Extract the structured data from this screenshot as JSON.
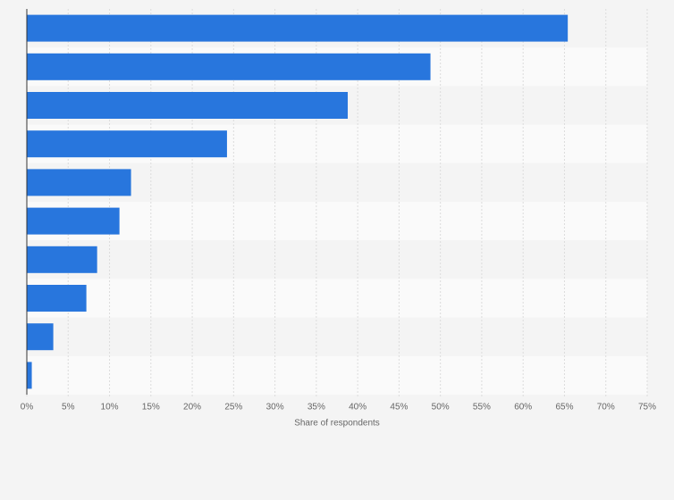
{
  "chart_data": {
    "type": "bar",
    "orientation": "horizontal",
    "x_label": "Share of respondents",
    "categories": [
      null,
      null,
      null,
      null,
      null,
      null,
      null,
      null,
      null,
      null
    ],
    "values": [
      65.4,
      48.8,
      38.8,
      24.2,
      12.6,
      11.2,
      8.5,
      7.2,
      3.2,
      0.6
    ],
    "color": "#2876dd",
    "xlim": [
      0,
      75
    ],
    "xticks": [
      {
        "value": 0,
        "label": "0%"
      },
      {
        "value": 5,
        "label": "5%"
      },
      {
        "value": 10,
        "label": "10%"
      },
      {
        "value": 15,
        "label": "15%"
      },
      {
        "value": 20,
        "label": "20%"
      },
      {
        "value": 25,
        "label": "25%"
      },
      {
        "value": 30,
        "label": "30%"
      },
      {
        "value": 35,
        "label": "35%"
      },
      {
        "value": 40,
        "label": "40%"
      },
      {
        "value": 45,
        "label": "45%"
      },
      {
        "value": 50,
        "label": "50%"
      },
      {
        "value": 55,
        "label": "55%"
      },
      {
        "value": 60,
        "label": "60%"
      },
      {
        "value": 65,
        "label": "65%"
      },
      {
        "value": 70,
        "label": "70%"
      },
      {
        "value": 75,
        "label": "75%"
      }
    ],
    "grid": true
  }
}
